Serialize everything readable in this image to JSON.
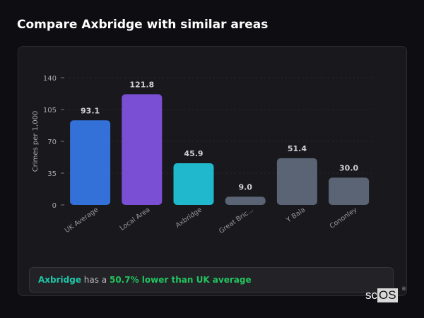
{
  "title": "Compare Axbridge with similar areas",
  "chart_data": {
    "type": "bar",
    "title": "",
    "xlabel": "",
    "ylabel": "Crimes per 1,000",
    "ylim": [
      0,
      140
    ],
    "yticks": [
      0,
      35,
      70,
      105,
      140
    ],
    "ytick_labels": [
      "0",
      "35",
      "70",
      "105",
      "140"
    ],
    "grid": true,
    "categories": [
      "UK Average",
      "Local Area",
      "Axbridge",
      "Great Bric...",
      "Y Bala",
      "Cononley"
    ],
    "values": [
      93.1,
      121.8,
      45.9,
      9.0,
      51.4,
      30.0
    ],
    "data_labels": [
      "93.1",
      "121.8",
      "45.9",
      "9.0",
      "51.4",
      "30.0"
    ],
    "colors": [
      "#3371d9",
      "#7b4fd3",
      "#1fb8cc",
      "#5a6475",
      "#5a6475",
      "#5a6475"
    ]
  },
  "summary": {
    "area": "Axbridge",
    "middle": " has a ",
    "comparison": "50.7% lower than UK average",
    "area_color": "#1fc7a8",
    "comparison_color": "#22c55e"
  },
  "logo": {
    "left": "sc",
    "right": "OS",
    "mark": "®"
  }
}
